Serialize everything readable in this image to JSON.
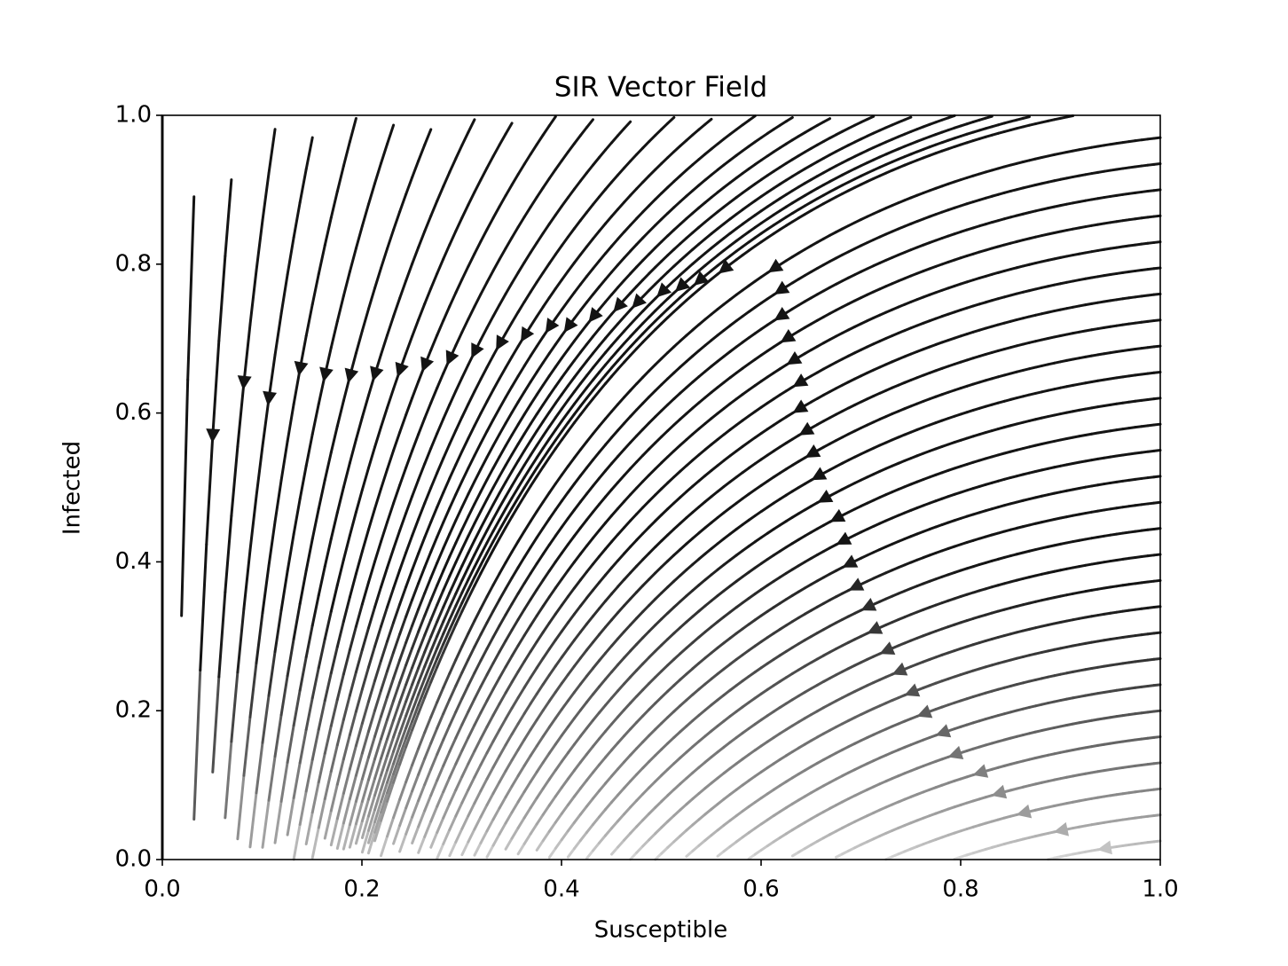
{
  "chart_data": {
    "type": "streamplot",
    "title": "SIR Vector Field",
    "xlabel": "Susceptible",
    "ylabel": "Infected",
    "xlim": [
      0,
      1
    ],
    "ylim": [
      0,
      1
    ],
    "xticks": [
      {
        "value": 0,
        "label": "0.0"
      },
      0.2,
      0.4,
      0.6,
      0.8,
      {
        "value": 1,
        "label": "1.0"
      }
    ],
    "yticks": [
      {
        "value": 0,
        "label": "0.0"
      },
      0.2,
      0.4,
      0.6,
      0.8,
      {
        "value": 1,
        "label": "1.0"
      }
    ],
    "grid": false,
    "color": "#000000"
  }
}
